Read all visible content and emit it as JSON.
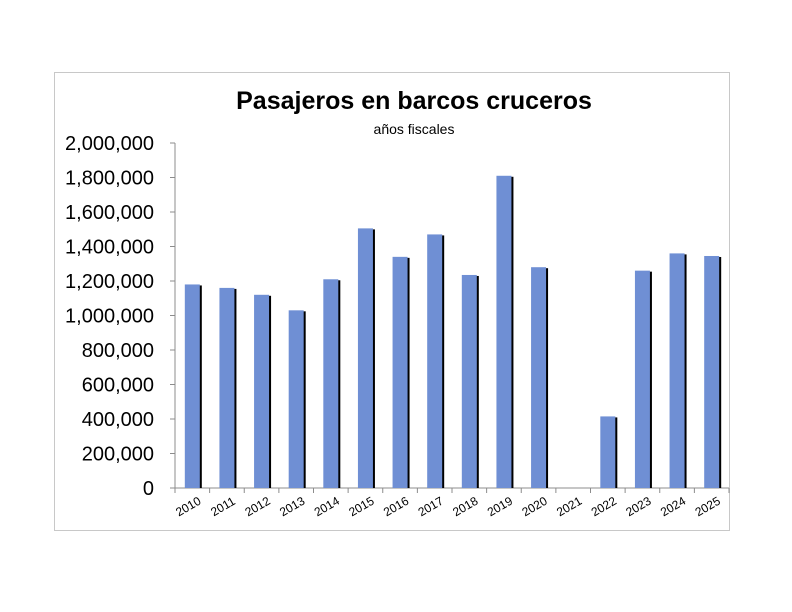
{
  "chart_data": {
    "type": "bar",
    "title": "Pasajeros en barcos cruceros",
    "subtitle": "años fiscales",
    "xlabel": "",
    "ylabel": "",
    "categories": [
      "2010",
      "2011",
      "2012",
      "2013",
      "2014",
      "2015",
      "2016",
      "2017",
      "2018",
      "2019",
      "2020",
      "2021",
      "2022",
      "2023",
      "2024",
      "2025"
    ],
    "values": [
      1180000,
      1160000,
      1120000,
      1030000,
      1210000,
      1505000,
      1340000,
      1470000,
      1235000,
      1810000,
      1280000,
      0,
      415000,
      1260000,
      1360000,
      1345000
    ],
    "ylim": [
      0,
      2000000
    ],
    "yticks": [
      "0",
      "200,000",
      "400,000",
      "600,000",
      "800,000",
      "1,000,000",
      "1,200,000",
      "1,400,000",
      "1,600,000",
      "1,800,000",
      "2,000,000"
    ],
    "grid": false,
    "legend": "none",
    "bar_color": "#6f8fd4",
    "shadow_color": "#000000"
  }
}
